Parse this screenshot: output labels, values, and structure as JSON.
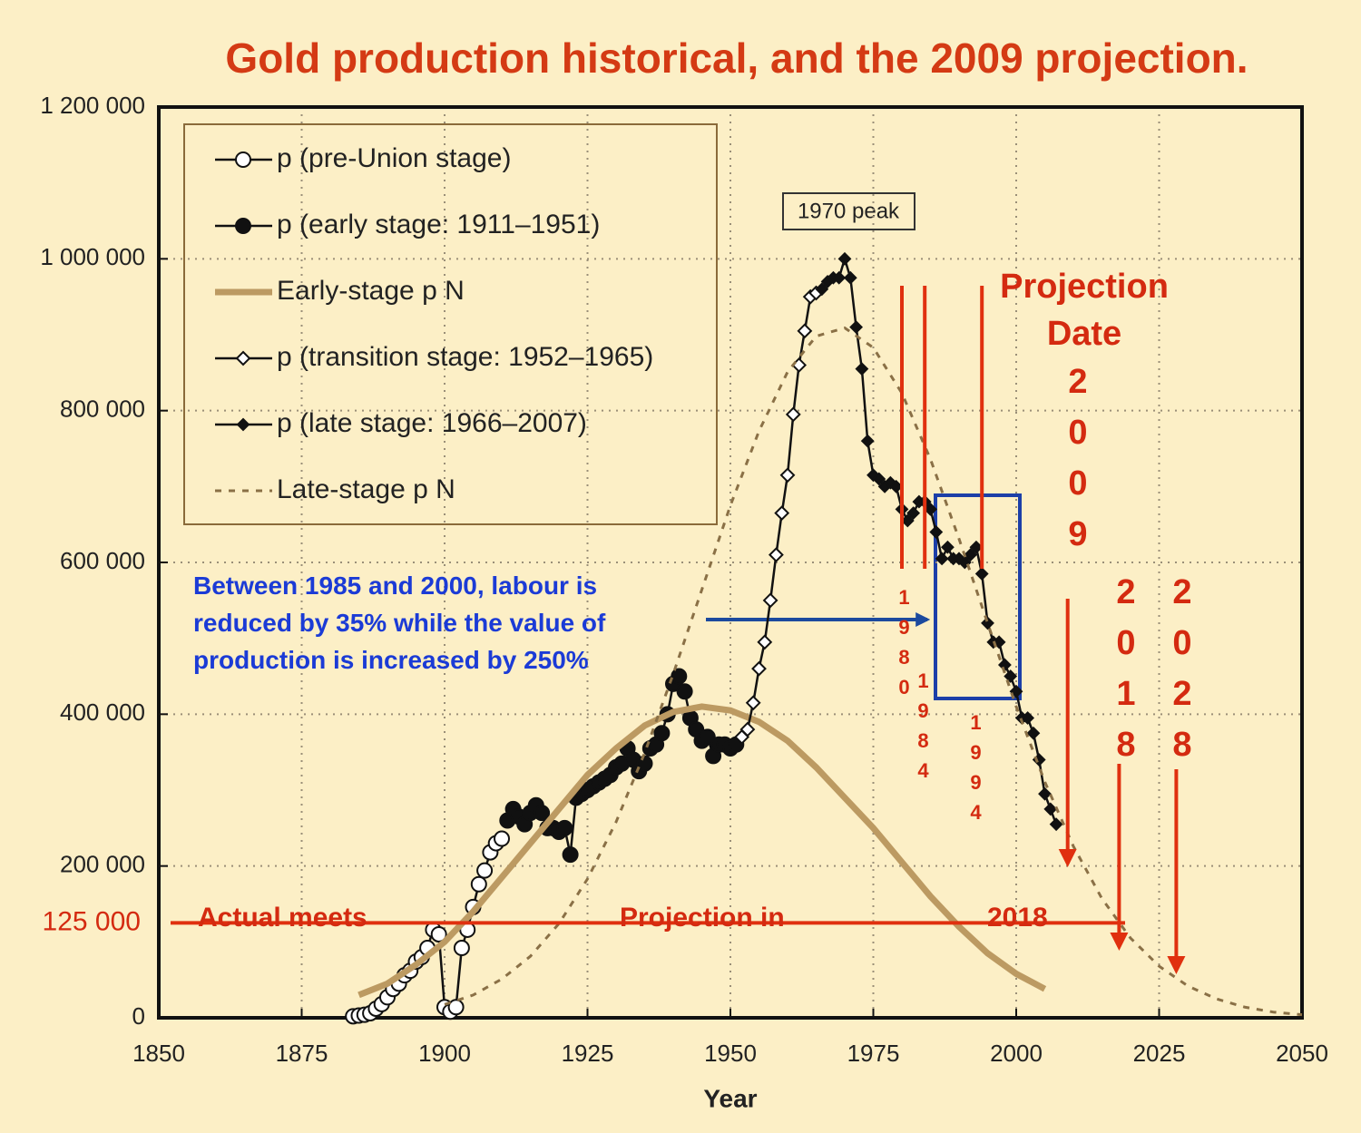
{
  "chart_data": {
    "type": "line",
    "title": "Gold production historical, and the 2009 projection.",
    "xlabel": "Year",
    "xlim": [
      1850,
      2050
    ],
    "ylim": [
      0,
      1200000
    ],
    "xticks": [
      1850,
      1875,
      1900,
      1925,
      1950,
      1975,
      2000,
      2025,
      2050
    ],
    "yticks": [
      0,
      {
        "value": 200000,
        "label": "200 000"
      },
      {
        "value": 400000,
        "label": "400 000"
      },
      {
        "value": 600000,
        "label": "600 000"
      },
      {
        "value": 800000,
        "label": "800 000"
      },
      {
        "value": 1000000,
        "label": "1 000 000"
      },
      {
        "value": 1200000,
        "label": "1 200 000"
      }
    ],
    "grid": true,
    "legend": "upper left",
    "series": [
      {
        "name": "p (pre-Union stage)",
        "color": "#111111",
        "marker": "open-circle",
        "line": "solid",
        "x": [
          1884,
          1885,
          1886,
          1887,
          1888,
          1889,
          1890,
          1891,
          1892,
          1893,
          1894,
          1895,
          1896,
          1897,
          1898,
          1899,
          1900,
          1901,
          1902,
          1903,
          1904,
          1905,
          1906,
          1907,
          1908,
          1909,
          1910
        ],
        "values": [
          2000,
          3000,
          4000,
          6000,
          12000,
          18000,
          27000,
          38000,
          45000,
          56000,
          62000,
          74000,
          80000,
          92000,
          116000,
          110000,
          14000,
          8000,
          14000,
          92000,
          116000,
          146000,
          176000,
          194000,
          218000,
          230000,
          236000
        ]
      },
      {
        "name": "p (early stage: 1911–1951)",
        "color": "#111111",
        "marker": "filled-circle",
        "line": "solid",
        "x": [
          1911,
          1912,
          1913,
          1914,
          1915,
          1916,
          1917,
          1918,
          1919,
          1920,
          1921,
          1922,
          1923,
          1924,
          1925,
          1926,
          1927,
          1928,
          1929,
          1930,
          1931,
          1932,
          1933,
          1934,
          1935,
          1936,
          1937,
          1938,
          1939,
          1940,
          1941,
          1942,
          1943,
          1944,
          1945,
          1946,
          1947,
          1948,
          1949,
          1950,
          1951
        ],
        "values": [
          260000,
          275000,
          265000,
          255000,
          270000,
          280000,
          270000,
          250000,
          250000,
          245000,
          250000,
          215000,
          290000,
          295000,
          300000,
          305000,
          310000,
          315000,
          320000,
          330000,
          335000,
          355000,
          340000,
          325000,
          335000,
          355000,
          360000,
          375000,
          400000,
          440000,
          450000,
          430000,
          395000,
          380000,
          365000,
          370000,
          345000,
          360000,
          360000,
          355000,
          360000
        ]
      },
      {
        "name": "Early-stage p N",
        "color": "#bc9a62",
        "marker": null,
        "line": "thick",
        "x": [
          1885,
          1890,
          1895,
          1900,
          1905,
          1910,
          1915,
          1920,
          1925,
          1930,
          1935,
          1940,
          1945,
          1950,
          1955,
          1960,
          1965,
          1970,
          1975,
          1980,
          1985,
          1990,
          1995,
          2000,
          2005
        ],
        "values": [
          30000,
          45000,
          70000,
          100000,
          140000,
          185000,
          230000,
          275000,
          320000,
          355000,
          385000,
          403000,
          410000,
          405000,
          390000,
          365000,
          330000,
          290000,
          250000,
          205000,
          160000,
          120000,
          85000,
          58000,
          38000
        ]
      },
      {
        "name": "p (transition stage: 1952–1965)",
        "color": "#111111",
        "marker": "open-diamond",
        "line": "solid",
        "x": [
          1952,
          1953,
          1954,
          1955,
          1956,
          1957,
          1958,
          1959,
          1960,
          1961,
          1962,
          1963,
          1964,
          1965
        ],
        "values": [
          370000,
          380000,
          415000,
          460000,
          495000,
          550000,
          610000,
          665000,
          715000,
          795000,
          860000,
          905000,
          950000,
          955000
        ]
      },
      {
        "name": "p (late stage: 1966–2007)",
        "color": "#111111",
        "marker": "filled-diamond",
        "line": "solid",
        "x": [
          1966,
          1967,
          1968,
          1969,
          1970,
          1971,
          1972,
          1973,
          1974,
          1975,
          1976,
          1977,
          1978,
          1979,
          1980,
          1981,
          1982,
          1983,
          1984,
          1985,
          1986,
          1987,
          1988,
          1989,
          1990,
          1991,
          1992,
          1993,
          1994,
          1995,
          1996,
          1997,
          1998,
          1999,
          2000,
          2001,
          2002,
          2003,
          2004,
          2005,
          2006,
          2007
        ],
        "values": [
          960000,
          970000,
          975000,
          975000,
          1000000,
          975000,
          910000,
          855000,
          760000,
          715000,
          710000,
          700000,
          705000,
          700000,
          670000,
          655000,
          665000,
          680000,
          680000,
          670000,
          640000,
          605000,
          620000,
          605000,
          605000,
          600000,
          610000,
          620000,
          585000,
          520000,
          495000,
          495000,
          465000,
          450000,
          430000,
          395000,
          395000,
          375000,
          340000,
          295000,
          275000,
          255000
        ]
      },
      {
        "name": "Late-stage p N",
        "color": "#8a7046",
        "marker": null,
        "line": "dashed",
        "x": [
          1900,
          1905,
          1910,
          1915,
          1920,
          1925,
          1930,
          1935,
          1940,
          1945,
          1950,
          1955,
          1960,
          1965,
          1970,
          1975,
          1980,
          1985,
          1990,
          1995,
          2000,
          2005,
          2010,
          2015,
          2020,
          2025,
          2030,
          2035,
          2040,
          2045,
          2050
        ],
        "values": [
          17500,
          30000,
          51000,
          81000,
          124000,
          183000,
          258000,
          349000,
          453000,
          564000,
          675000,
          773000,
          851000,
          898000,
          909000,
          883000,
          823000,
          736000,
          631000,
          520000,
          410000,
          311000,
          226000,
          157000,
          105000,
          68000,
          42000,
          25000,
          14000,
          7500,
          4000
        ]
      }
    ],
    "annotations": {
      "peak_label": "1970 peak",
      "projection_heading": "Projection Date",
      "projection_dates": [
        2009,
        2018,
        2028
      ],
      "marker_years": [
        1980,
        1984,
        1994
      ],
      "callout": "Between 1985 and 2000, labour is reduced by 35% while the value of production is increased by  250%",
      "reference": {
        "value": 125000,
        "label": "125 000"
      },
      "meets_text": [
        "Actual meets",
        "Projection in",
        "2018"
      ]
    }
  }
}
